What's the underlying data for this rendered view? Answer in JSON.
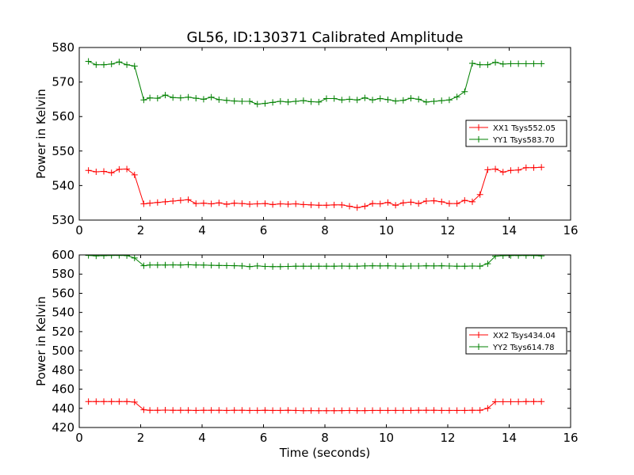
{
  "chart_data": [
    {
      "type": "line",
      "title": "GL56, ID:130371 Calibrated Amplitude",
      "xlabel": "",
      "ylabel": "Power in Kelvin",
      "xlim": [
        0,
        16
      ],
      "ylim": [
        530,
        580
      ],
      "xticks": [
        "0",
        "2",
        "4",
        "6",
        "8",
        "10",
        "12",
        "14",
        "16"
      ],
      "yticks": [
        "530",
        "540",
        "550",
        "560",
        "570",
        "580"
      ],
      "xtick_values": [
        0,
        2,
        4,
        6,
        8,
        10,
        12,
        14,
        16
      ],
      "ytick_values": [
        530,
        540,
        550,
        560,
        570,
        580
      ],
      "legend_position": "center-right",
      "series": [
        {
          "name": "XX1 Tsys552.05",
          "color": "#ff0000",
          "x": [
            0.3,
            0.55,
            0.8,
            1.05,
            1.3,
            1.55,
            1.8,
            2.1,
            2.3,
            2.55,
            2.8,
            3.05,
            3.3,
            3.55,
            3.8,
            4.05,
            4.3,
            4.55,
            4.8,
            5.05,
            5.3,
            5.55,
            5.8,
            6.05,
            6.3,
            6.55,
            6.8,
            7.05,
            7.3,
            7.55,
            7.8,
            8.05,
            8.3,
            8.55,
            8.8,
            9.05,
            9.3,
            9.55,
            9.8,
            10.05,
            10.3,
            10.55,
            10.8,
            11.05,
            11.3,
            11.55,
            11.8,
            12.05,
            12.3,
            12.55,
            12.8,
            13.05,
            13.3,
            13.55,
            13.8,
            14.05,
            14.3,
            14.55,
            14.8,
            15.05
          ],
          "y": [
            544.4,
            544.0,
            544.1,
            543.7,
            544.7,
            544.8,
            543.1,
            534.7,
            534.9,
            535.1,
            535.3,
            535.5,
            535.7,
            535.9,
            534.8,
            534.9,
            534.7,
            535.0,
            534.6,
            534.9,
            534.8,
            534.6,
            534.7,
            534.8,
            534.5,
            534.7,
            534.6,
            534.7,
            534.5,
            534.4,
            534.3,
            534.3,
            534.4,
            534.4,
            534.0,
            533.6,
            534.0,
            534.8,
            534.7,
            535.1,
            534.3,
            535.0,
            535.2,
            534.8,
            535.5,
            535.6,
            535.3,
            534.8,
            534.8,
            535.7,
            535.3,
            537.4,
            544.6,
            544.8,
            543.9,
            544.4,
            544.5,
            545.2,
            545.2,
            545.3
          ]
        },
        {
          "name": "YY1 Tsys583.70",
          "color": "#008000",
          "x": [
            0.3,
            0.55,
            0.8,
            1.05,
            1.3,
            1.55,
            1.8,
            2.1,
            2.3,
            2.55,
            2.8,
            3.05,
            3.3,
            3.55,
            3.8,
            4.05,
            4.3,
            4.55,
            4.8,
            5.05,
            5.3,
            5.55,
            5.8,
            6.05,
            6.3,
            6.55,
            6.8,
            7.05,
            7.3,
            7.55,
            7.8,
            8.05,
            8.3,
            8.55,
            8.8,
            9.05,
            9.3,
            9.55,
            9.8,
            10.05,
            10.3,
            10.55,
            10.8,
            11.05,
            11.3,
            11.55,
            11.8,
            12.05,
            12.3,
            12.55,
            12.8,
            13.05,
            13.3,
            13.55,
            13.8,
            14.05,
            14.3,
            14.55,
            14.8,
            15.05
          ],
          "y": [
            576.0,
            575.0,
            575.0,
            575.2,
            575.8,
            575.0,
            574.6,
            564.8,
            565.4,
            565.3,
            566.2,
            565.5,
            565.4,
            565.6,
            565.3,
            565.0,
            565.6,
            564.9,
            564.7,
            564.5,
            564.4,
            564.4,
            563.6,
            563.8,
            564.1,
            564.4,
            564.2,
            564.4,
            564.6,
            564.3,
            564.2,
            565.2,
            565.2,
            564.8,
            565.0,
            564.8,
            565.4,
            564.8,
            565.2,
            564.9,
            564.5,
            564.7,
            565.3,
            565.0,
            564.2,
            564.4,
            564.6,
            564.8,
            565.7,
            567.2,
            575.4,
            575.0,
            575.0,
            575.7,
            575.2,
            575.3,
            575.3,
            575.3,
            575.3,
            575.3
          ]
        }
      ]
    },
    {
      "type": "line",
      "title": "",
      "xlabel": "Time (seconds)",
      "ylabel": "Power in Kelvin",
      "xlim": [
        0,
        16
      ],
      "ylim": [
        420,
        600
      ],
      "xticks": [
        "0",
        "2",
        "4",
        "6",
        "8",
        "10",
        "12",
        "14",
        "16"
      ],
      "yticks": [
        "420",
        "440",
        "460",
        "480",
        "500",
        "520",
        "540",
        "560",
        "580",
        "600"
      ],
      "xtick_values": [
        0,
        2,
        4,
        6,
        8,
        10,
        12,
        14,
        16
      ],
      "ytick_values": [
        420,
        440,
        460,
        480,
        500,
        520,
        540,
        560,
        580,
        600
      ],
      "legend_position": "center-right",
      "series": [
        {
          "name": "XX2 Tsys434.04",
          "color": "#ff0000",
          "x": [
            0.3,
            0.55,
            0.8,
            1.05,
            1.3,
            1.55,
            1.8,
            2.1,
            2.3,
            2.55,
            2.8,
            3.05,
            3.3,
            3.55,
            3.8,
            4.05,
            4.3,
            4.55,
            4.8,
            5.05,
            5.3,
            5.55,
            5.8,
            6.05,
            6.3,
            6.55,
            6.8,
            7.05,
            7.3,
            7.55,
            7.8,
            8.05,
            8.3,
            8.55,
            8.8,
            9.05,
            9.3,
            9.55,
            9.8,
            10.05,
            10.3,
            10.55,
            10.8,
            11.05,
            11.3,
            11.55,
            11.8,
            12.05,
            12.3,
            12.55,
            12.8,
            13.05,
            13.3,
            13.55,
            13.8,
            14.05,
            14.3,
            14.55,
            14.8,
            15.05
          ],
          "y": [
            447,
            447,
            447,
            447,
            447,
            447,
            446.5,
            438.5,
            438,
            438,
            438.2,
            438,
            438,
            438,
            437.8,
            438,
            438,
            438,
            437.8,
            438,
            438,
            437.8,
            437.8,
            438,
            437.8,
            437.8,
            438,
            437.8,
            437.5,
            437.6,
            437.5,
            437.5,
            437.5,
            437.6,
            437.8,
            437.6,
            437.6,
            437.8,
            437.8,
            437.8,
            437.8,
            437.8,
            437.8,
            438,
            438,
            438,
            437.8,
            437.8,
            437.8,
            437.8,
            438,
            438,
            440,
            446.8,
            446.8,
            446.8,
            446.8,
            447,
            447,
            447
          ]
        },
        {
          "name": "YY2 Tsys614.78",
          "color": "#008000",
          "x": [
            0.3,
            0.55,
            0.8,
            1.05,
            1.3,
            1.55,
            1.8,
            2.1,
            2.3,
            2.55,
            2.8,
            3.05,
            3.3,
            3.55,
            3.8,
            4.05,
            4.3,
            4.55,
            4.8,
            5.05,
            5.3,
            5.55,
            5.8,
            6.05,
            6.3,
            6.55,
            6.8,
            7.05,
            7.3,
            7.55,
            7.8,
            8.05,
            8.3,
            8.55,
            8.8,
            9.05,
            9.3,
            9.55,
            9.8,
            10.05,
            10.3,
            10.55,
            10.8,
            11.05,
            11.3,
            11.55,
            11.8,
            12.05,
            12.3,
            12.55,
            12.8,
            13.05,
            13.3,
            13.55,
            13.8,
            14.05,
            14.3,
            14.55,
            14.8,
            15.05
          ],
          "y": [
            599.5,
            599,
            599.2,
            599.5,
            599.5,
            599.3,
            596.8,
            588.8,
            589.5,
            589.5,
            589.5,
            589.6,
            589.5,
            589.8,
            589.5,
            589.4,
            589.2,
            589,
            588.9,
            588.8,
            588.5,
            587.8,
            588.5,
            588,
            587.8,
            587.8,
            588,
            588.2,
            588.2,
            588.2,
            588.2,
            588.2,
            588.2,
            588.4,
            588.2,
            588.2,
            588.5,
            588.6,
            588.5,
            588.6,
            588.4,
            588.2,
            588.4,
            588.4,
            588.6,
            588.5,
            588.6,
            588.4,
            588.2,
            588.2,
            588.4,
            588.2,
            590.8,
            598.8,
            599.2,
            599.4,
            599.4,
            599.4,
            599.4,
            599.0
          ]
        }
      ]
    }
  ]
}
